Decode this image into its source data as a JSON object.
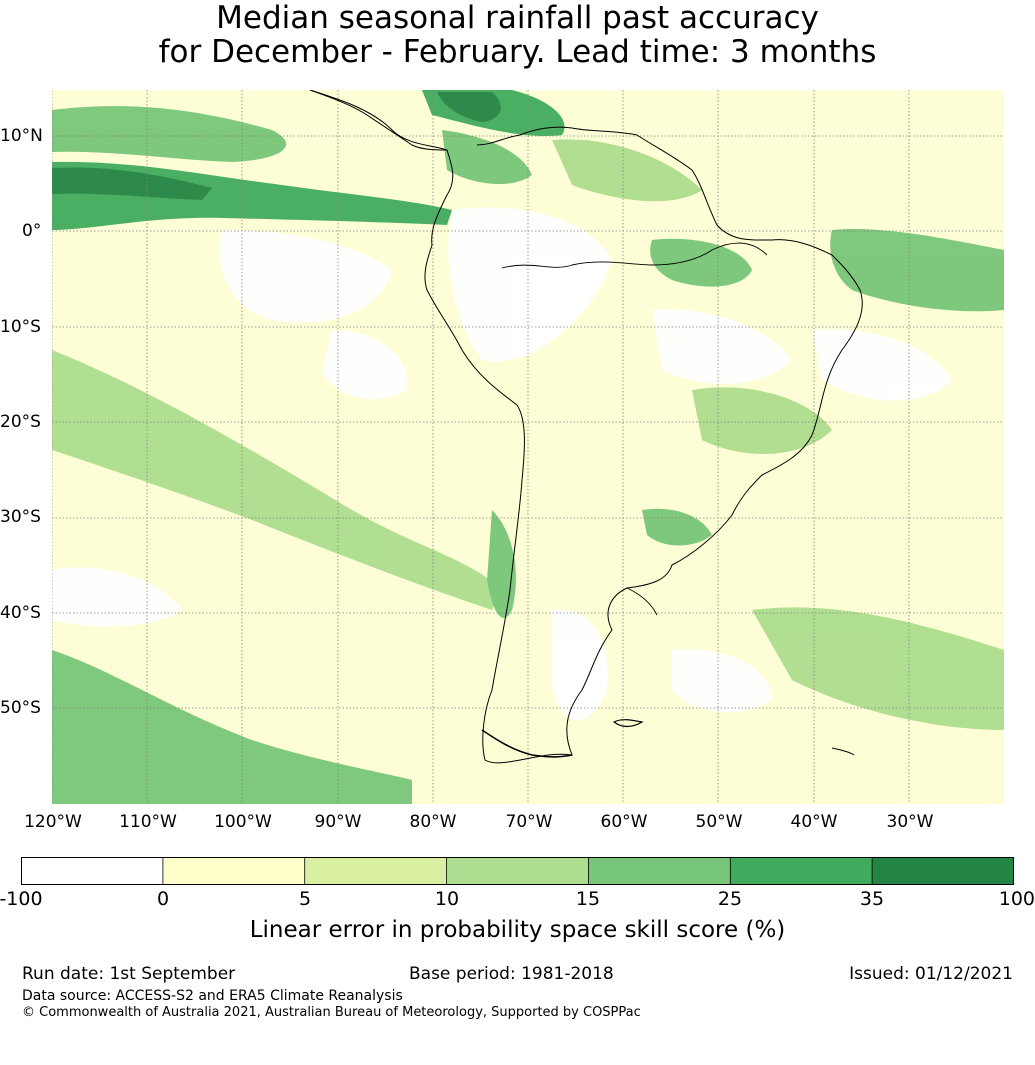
{
  "title": {
    "line1": "Median seasonal rainfall past accuracy",
    "line2": "for December - February. Lead time: 3 months"
  },
  "map": {
    "region": "South America",
    "lat_labels": [
      "10°N",
      "0°",
      "10°S",
      "20°S",
      "30°S",
      "40°S",
      "50°S"
    ],
    "lon_labels": [
      "120°W",
      "110°W",
      "100°W",
      "90°W",
      "80°W",
      "70°W",
      "60°W",
      "50°W",
      "40°W",
      "30°W"
    ],
    "background_color": "#fefed6",
    "gridline_color": "#808080"
  },
  "colorbar": {
    "ticks": [
      "-100",
      "0",
      "5",
      "10",
      "15",
      "25",
      "35",
      "100"
    ],
    "colors": [
      "#ffffff",
      "#ffffcc",
      "#d9f0a3",
      "#addd8e",
      "#78c679",
      "#41ab5d",
      "#238443"
    ],
    "label": "Linear error in probability space skill score (%)"
  },
  "footer": {
    "run_date": "Run date: 1st September",
    "base_period": "Base period: 1981-2018",
    "issued": "Issued: 01/12/2021",
    "data_source": "Data source: ACCESS-S2 and ERA5 Climate Reanalysis",
    "copyright": "© Commonwealth of Australia 2021, Australian Bureau of Meteorology, Supported by COSPPac"
  }
}
